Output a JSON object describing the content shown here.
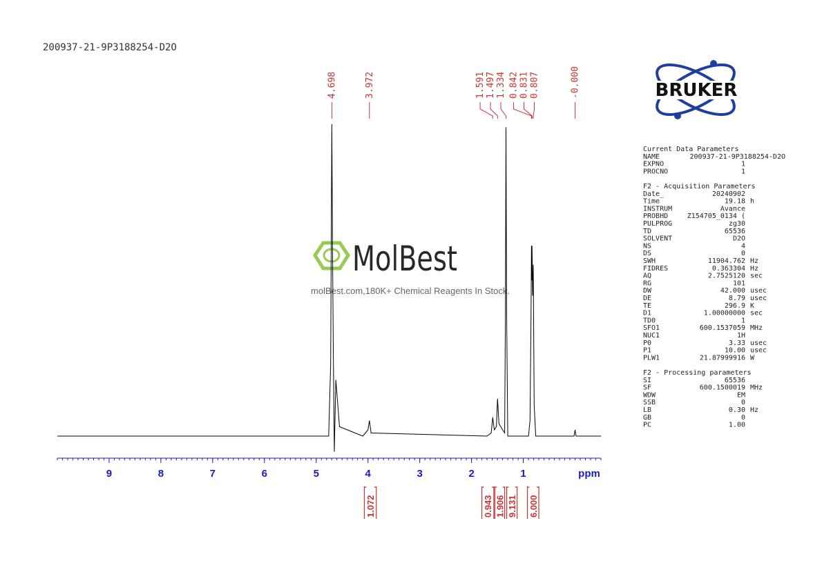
{
  "header": {
    "title": "200937-21-9P3188254-D2O"
  },
  "logo": {
    "text": "BRUKER"
  },
  "watermark": {
    "brand": "MolBest",
    "tagline": "molBest.com,180K+ Chemical Reagents In Stock."
  },
  "chart_data": {
    "type": "line",
    "x_label": "ppm",
    "color": "#000000",
    "label_color": "#cc3333",
    "axis_color": "#1a1acc",
    "xlim": [
      10,
      -0.5
    ],
    "xticks": [
      9,
      8,
      7,
      6,
      5,
      4,
      3,
      2,
      1
    ],
    "ylim": [
      0,
      100
    ],
    "x": [
      10,
      4.8,
      4.76,
      4.72,
      4.71,
      4.698,
      4.685,
      4.67,
      4.65,
      4.62,
      4.55,
      4.1,
      4.0,
      3.972,
      3.94,
      1.7,
      1.62,
      1.591,
      1.56,
      1.52,
      1.497,
      1.47,
      1.4,
      1.36,
      1.345,
      1.334,
      1.323,
      1.3,
      0.9,
      0.87,
      0.85,
      0.842,
      0.836,
      0.831,
      0.82,
      0.807,
      0.79,
      0.76,
      0.02,
      0.0,
      -0.02,
      -0.5
    ],
    "values": [
      0,
      0,
      0,
      23,
      60,
      100,
      60,
      28,
      -5,
      18,
      3,
      0,
      2,
      5,
      1,
      0,
      1,
      6,
      2,
      3,
      12,
      4,
      2,
      1,
      40,
      99,
      40,
      0,
      0,
      5,
      40,
      61,
      50,
      61,
      45,
      55,
      10,
      0,
      0,
      2,
      0,
      0
    ],
    "peaks": [
      4.698,
      3.972,
      1.591,
      1.497,
      1.334,
      0.842,
      0.831,
      0.807,
      {
        "value": 0,
        "label": "-0.000"
      }
    ],
    "integrals": [
      {
        "from": 4.07,
        "to": 3.84,
        "value": 1.072
      },
      {
        "from": 1.8,
        "to": 1.57,
        "value": 0.943
      },
      {
        "from": 1.55,
        "to": 1.36,
        "value": 1.906
      },
      {
        "from": 1.32,
        "to": 1.12,
        "value": 9.131
      },
      {
        "from": 0.92,
        "to": 0.7,
        "value": {
          "value": 6,
          "label": "6.000"
        }
      }
    ]
  },
  "parameters": [
    {
      "title": "Current Data Parameters",
      "rows": [
        [
          "NAME",
          "200937-21-9P3188254-D2O",
          ""
        ],
        [
          "EXPNO",
          "1",
          ""
        ],
        [
          "PROCNO",
          "1",
          ""
        ]
      ]
    },
    {
      "title": "F2 - Acquisition Parameters",
      "rows": [
        [
          "Date_",
          "20240902",
          ""
        ],
        [
          "Time",
          "19.18",
          "h"
        ],
        [
          "INSTRUM",
          "Avance",
          ""
        ],
        [
          "PROBHD",
          "Z154705_0134 (",
          ""
        ],
        [
          "PULPROG",
          "zg30",
          ""
        ],
        [
          "TD",
          "65536",
          ""
        ],
        [
          "SOLVENT",
          "D2O",
          ""
        ],
        [
          "NS",
          "4",
          ""
        ],
        [
          "DS",
          "0",
          ""
        ],
        [
          "SWH",
          "11904.762",
          "Hz"
        ],
        [
          "FIDRES",
          "0.363304",
          "Hz"
        ],
        [
          "AQ",
          "2.7525120",
          "sec"
        ],
        [
          "RG",
          "101",
          ""
        ],
        [
          "DW",
          "42.000",
          "usec"
        ],
        [
          "DE",
          "8.79",
          "usec"
        ],
        [
          "TE",
          "296.9",
          "K"
        ],
        [
          "D1",
          "1.00000000",
          "sec"
        ],
        [
          "TD0",
          "1",
          ""
        ],
        [
          "SFO1",
          "600.1537059",
          "MHz"
        ],
        [
          "NUC1",
          "1H",
          ""
        ],
        [
          "P0",
          "3.33",
          "usec"
        ],
        [
          "P1",
          "10.00",
          "usec"
        ],
        [
          "PLW1",
          "21.87999916",
          "W"
        ]
      ]
    },
    {
      "title": "F2 - Processing parameters",
      "rows": [
        [
          "SI",
          "65536",
          ""
        ],
        [
          "SF",
          "600.1500019",
          "MHz"
        ],
        [
          "WDW",
          "EM",
          ""
        ],
        [
          "SSB",
          "0",
          ""
        ],
        [
          "LB",
          "0.30",
          "Hz"
        ],
        [
          "GB",
          "0",
          ""
        ],
        [
          "PC",
          "1.00",
          ""
        ]
      ]
    }
  ]
}
